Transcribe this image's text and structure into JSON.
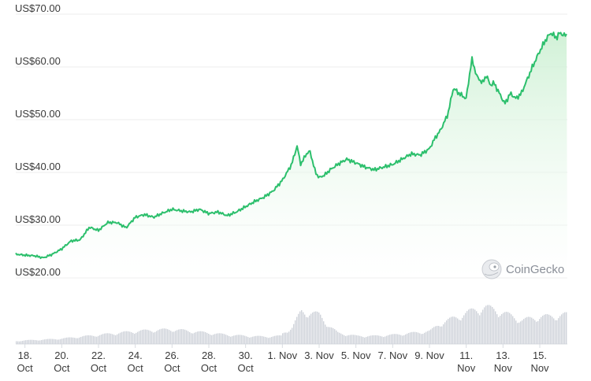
{
  "chart_data": {
    "type": "area",
    "currency_prefix": "US$",
    "y_ticks": [
      "US$20.00",
      "US$30.00",
      "US$40.00",
      "US$50.00",
      "US$60.00",
      "US$70.00"
    ],
    "y_tick_values": [
      20,
      30,
      40,
      50,
      60,
      70
    ],
    "ylim": [
      20,
      70
    ],
    "x_ticks": [
      {
        "day": 0,
        "line1": "18.",
        "line2": "Oct"
      },
      {
        "day": 2,
        "line1": "20.",
        "line2": "Oct"
      },
      {
        "day": 4,
        "line1": "22.",
        "line2": "Oct"
      },
      {
        "day": 6,
        "line1": "24.",
        "line2": "Oct"
      },
      {
        "day": 8,
        "line1": "26.",
        "line2": "Oct"
      },
      {
        "day": 10,
        "line1": "28.",
        "line2": "Oct"
      },
      {
        "day": 12,
        "line1": "30.",
        "line2": "Oct"
      },
      {
        "day": 14,
        "line1": "1. Nov",
        "line2": ""
      },
      {
        "day": 16,
        "line1": "3. Nov",
        "line2": ""
      },
      {
        "day": 18,
        "line1": "5. Nov",
        "line2": ""
      },
      {
        "day": 20,
        "line1": "7. Nov",
        "line2": ""
      },
      {
        "day": 22,
        "line1": "9. Nov",
        "line2": ""
      },
      {
        "day": 24,
        "line1": "11.",
        "line2": "Nov"
      },
      {
        "day": 26,
        "line1": "13.",
        "line2": "Nov"
      },
      {
        "day": 28,
        "line1": "15.",
        "line2": "Nov"
      }
    ],
    "xlim_days": [
      -0.5,
      29.5
    ],
    "price_series": {
      "x_days": [
        -0.5,
        0,
        0.5,
        1,
        1.5,
        2,
        2.5,
        3,
        3.5,
        4,
        4.5,
        5,
        5.5,
        6,
        6.5,
        7,
        7.5,
        8,
        8.5,
        9,
        9.5,
        10,
        10.5,
        11,
        11.5,
        12,
        12.5,
        13,
        13.5,
        14,
        14.5,
        14.8,
        15,
        15.3,
        15.5,
        15.8,
        16,
        16.3,
        16.6,
        17,
        17.5,
        18,
        18.5,
        19,
        19.5,
        20,
        20.5,
        21,
        21.5,
        22,
        22.3,
        22.6,
        23,
        23.3,
        23.6,
        24,
        24.3,
        24.6,
        24.9,
        25.1,
        25.3,
        25.5,
        25.8,
        26.1,
        26.4,
        26.7,
        27,
        27.3,
        27.6,
        28,
        28.3,
        28.6,
        28.9,
        29.1,
        29.3
      ],
      "y": [
        24.5,
        24.3,
        24.2,
        23.8,
        24.5,
        25.5,
        27.0,
        27.2,
        29.6,
        29.0,
        30.5,
        30.5,
        29.5,
        31.5,
        32.0,
        31.5,
        32.3,
        33.0,
        32.7,
        32.5,
        33.0,
        32.2,
        32.5,
        31.8,
        32.5,
        33.5,
        34.5,
        35.3,
        36.5,
        38.5,
        41.5,
        45.0,
        41.5,
        43.5,
        44.0,
        40.0,
        39.0,
        39.5,
        40.5,
        41.5,
        42.5,
        41.8,
        41.0,
        40.5,
        41.0,
        41.5,
        42.5,
        43.5,
        43.3,
        44.5,
        46.5,
        48.0,
        51.0,
        56.0,
        55.0,
        54.0,
        61.5,
        58.0,
        57.0,
        58.5,
        56.5,
        57.0,
        55.0,
        53.0,
        55.0,
        54.0,
        55.0,
        57.5,
        60.0,
        63.0,
        65.0,
        66.5,
        65.5,
        66.5,
        66.0
      ]
    },
    "volume_series": {
      "x_days": [
        -0.5,
        0,
        1,
        2,
        3,
        4,
        5,
        6,
        7,
        8,
        9,
        10,
        11,
        12,
        13,
        13.9,
        14,
        14.5,
        15,
        15.5,
        16,
        16.5,
        17,
        18,
        19,
        20,
        21,
        22,
        22.5,
        23,
        23.5,
        24,
        24.5,
        25,
        25.5,
        26,
        26.5,
        27,
        27.5,
        28,
        28.5,
        29,
        29.3
      ],
      "relative_volume": [
        0.08,
        0.1,
        0.12,
        0.15,
        0.2,
        0.25,
        0.3,
        0.35,
        0.38,
        0.4,
        0.35,
        0.3,
        0.25,
        0.22,
        0.2,
        0.22,
        0.3,
        0.45,
        0.9,
        0.85,
        0.8,
        0.5,
        0.3,
        0.22,
        0.22,
        0.25,
        0.3,
        0.35,
        0.55,
        0.65,
        0.75,
        0.85,
        0.95,
        1.0,
        0.95,
        0.85,
        0.75,
        0.65,
        0.7,
        0.75,
        0.75,
        0.78,
        0.8
      ]
    },
    "line_color": "#2cbf6c",
    "area_gradient_color": "#c9efd0",
    "volume_color": "#cfd3da",
    "grid": true
  },
  "watermark": {
    "text": "CoinGecko",
    "icon": "gecko-logo-icon"
  }
}
